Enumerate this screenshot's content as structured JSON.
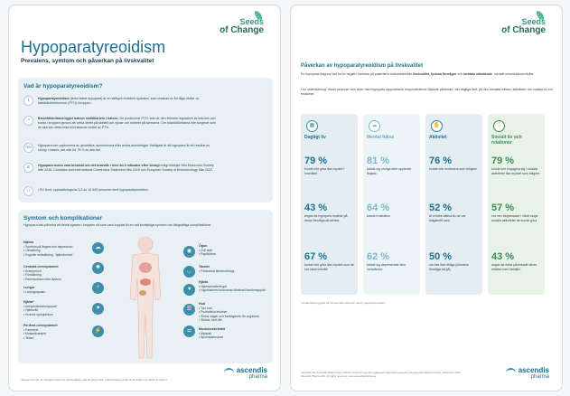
{
  "brand": {
    "seeds_line1": "Seeds",
    "seeds_line2": "of Change",
    "company_line1": "ascendis",
    "company_line2": "pharma"
  },
  "left": {
    "title": "Hypoparatyreoidism",
    "subtitle": "Prevalens, symtom och påverkan på livskvalitet",
    "what": {
      "heading": "Vad är hypoparatyreoidism?",
      "items": [
        {
          "icon": "info-icon",
          "bold": "Hypoparatyreoidism",
          "text": "(även kallat hypopara) är en sällsynt endokrin sjukdom, som orsakas av för låga nivåer av bisköldkörtelhormon (PTH) i kroppen."
        },
        {
          "icon": "gland-icon",
          "bold": "Bisköldkörtlarna ligger bakom sköldkörteln i halsen.",
          "text": "De producerar PTH, som är den främsta regulatorn av kalcium och fosfat i kroppen genom att verka direkt på skelett och njurar och indirekt på tarmarna. Om bisköldkörtlarna inte fungerar som de ska kan detta leda till bristande nivåer av PTH."
        },
        {
          "icon": "75%",
          "bold": "",
          "text": "Hypopara kan uppkomma av genetiska, autoimmuna eller andra anledningar. Vanligast är att hypopara är ett resultat av kirurgi i halsen, det står för 75 % av alla fall."
        },
        {
          "icon": "doc-icon",
          "bold": "Hypopara anses vara kroniskt om det kvarstår i över än 6 månader efter kirurgi",
          "text": "enligt riktlinjer från Endocrine Society från 2016, Canadian and International Consensus Statement från 2019 och European Society of Endocrinology från 2022."
        },
        {
          "icon": "people-icon",
          "bold": "",
          "text": "I EU lever uppskattningsvis 3,2 av 10 000 personer med hypoparatyreoidism."
        }
      ]
    },
    "symptoms": {
      "heading": "Symtom och komplikationer",
      "desc": "Hypopara kan påverka ett flertal system i kroppen så som vara kopplat till en rad kortsiktiga symtom och långsiktiga komplikationer.",
      "groups_left": [
        {
          "title": "Hjärna",
          "items": [
            "Symtom på ångest och depression",
            "Utmattning",
            "Kognitiv nedsättning, \"hjärndimma\""
          ]
        },
        {
          "title": "Centrala nervsystemet",
          "items": [
            "Kramperiod",
            "Förkalkning",
            "Parkinsonism eller dystoni"
          ]
        },
        {
          "title": "Lungor",
          "items": [
            "Laryngospasm"
          ]
        },
        {
          "title": "Hjärta*",
          "items": [
            "Arrhytmi/kardiomyopati",
            "Hjärtsvikt",
            "Kronisk njursjukdom"
          ]
        },
        {
          "title": "Perifera nervsystemet",
          "items": [
            "Parestesi",
            "Muskelkramper",
            "Tetani"
          ]
        }
      ],
      "groups_right": [
        {
          "title": "Ögon",
          "items": [
            "Grå starr",
            "Papillödem"
          ]
        },
        {
          "title": "Tänder",
          "items": [
            "Förändrad tandmorfologi"
          ]
        },
        {
          "title": "Hjärta",
          "items": [
            "Hjärtrytmstörningar",
            "Hypokalcemi-inducerad dilaterad kardiomyopati"
          ]
        },
        {
          "title": "Hud",
          "items": [
            "Torr hud",
            "Psoriatiska lesioner",
            "Sköra naglar och borttagande för ungdoms",
            "Skörat, torrt hår"
          ]
        },
        {
          "title": "Muskuloskeletalt",
          "items": [
            "Myopati",
            "Spondylartropati"
          ]
        }
      ],
      "footnote": "*Dessa symtom är vanligare bland de behandlade med lämpligt antal, enbart kalcium/vitamin D-terapi och aktiva D-vitamin"
    }
  },
  "right": {
    "section_title": "Påverkan av hypoparatyreoidism på livskvalitet",
    "desc1_a": "En hypopara-diagnos kan ha en negativ inverkan på patientens hälsorelaterade ",
    "desc1_b": "livskvalitet, fysiska förmågor",
    "desc1_c": " och ",
    "desc1_d": "mentala välmående",
    "desc1_e": ", oavsett serumkalciumnivåer.",
    "desc2": "I en undersökning* bland personer som lever med hypopara rapporterade respondenterna följande påverkan i det dagliga livet, på den mentala hälsan, aktiviteter och sociala liv och relationer.",
    "columns": [
      {
        "label": "Dagligt liv",
        "icon": "calendar-icon",
        "stats": [
          {
            "pct": "79 %",
            "text": "kunde inte göra lika mycket i hushållet"
          },
          {
            "pct": "43 %",
            "text": "angav att hypopara innebär på deras förmåga att arbeta"
          },
          {
            "pct": "67 %",
            "text": "kunde inte göra lika mycket som de var vana vid/ville"
          }
        ]
      },
      {
        "label": "Mental hälsa",
        "icon": "brain-icon",
        "stats": [
          {
            "pct": "81 %",
            "text": "kände sig oroliga eller upplevde ångest"
          },
          {
            "pct": "64 %",
            "text": "kände frustration"
          },
          {
            "pct": "62 %",
            "text": "kände sig deprimerade eller nedstämda"
          }
        ]
      },
      {
        "label": "Aktivitet",
        "icon": "activity-icon",
        "stats": [
          {
            "pct": "76 %",
            "text": "kunde inte motionera som tidigare"
          },
          {
            "pct": "52 %",
            "text": "är mindre aktiva än de var tidigare/ill vara"
          },
          {
            "pct": "50 %",
            "text": "var inte lika rörliga (inklusive förmåga att gå)"
          }
        ]
      },
      {
        "label": "Socialt liv och relationer",
        "icon": "heart-icon",
        "stats": [
          {
            "pct": "79 %",
            "text": "kunde inte engagera sig i sociala aktiviteter lika mycket som tidigare"
          },
          {
            "pct": "57 %",
            "text": "var mer begränsade i vilket sluga sociala aktiviteter de kunde göra"
          },
          {
            "pct": "43 %",
            "text": "angav att detta påverkade deras relation med familjen"
          }
        ]
      }
    ],
    "footnote": "*Undersökning gjord på 48 svenska personer med hypoparatyreoidism",
    "legal": "Ascendis The Ascendis Pharma logo and the company logo are registered trademarks owned by the Ascendis Pharma Group. December 2023 Ascendis Pharma A/S. All rights reserved. www.ascendispharma.se"
  },
  "colors": {
    "teal": "#1f6f8f",
    "col1": "#e7eff3",
    "col2": "#eaf2f5",
    "col3": "#e6eef2",
    "col4": "#ebf3ea",
    "green": "#3b8c58"
  }
}
